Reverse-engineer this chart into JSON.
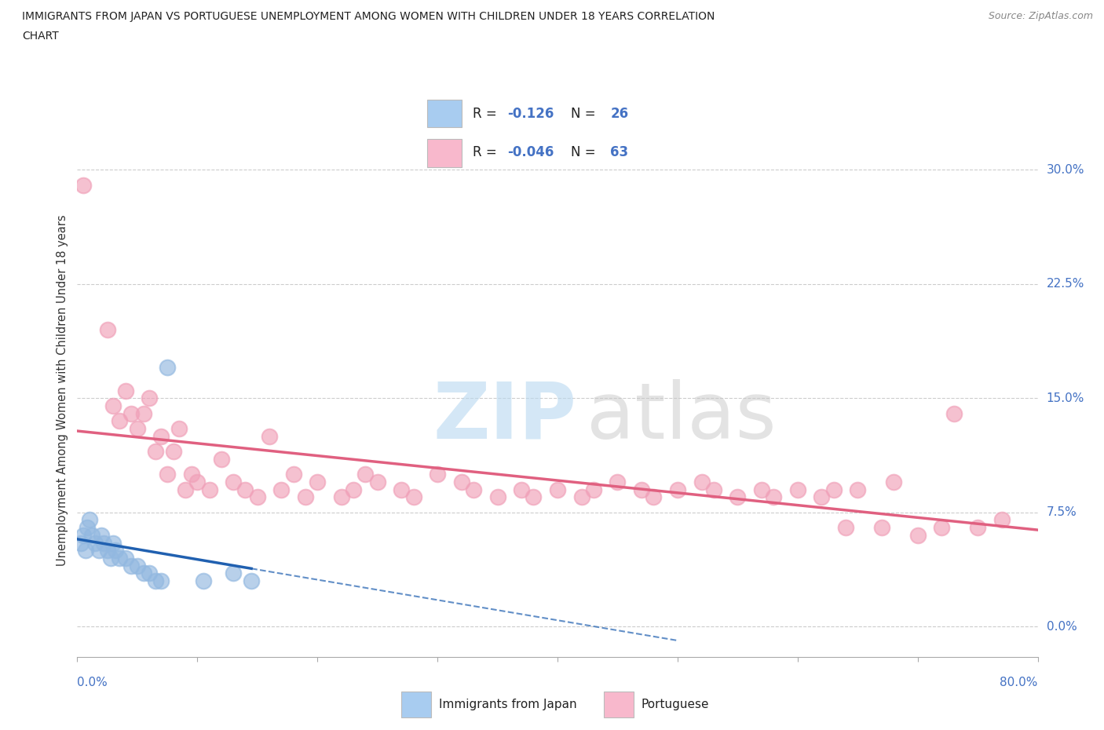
{
  "title_line1": "IMMIGRANTS FROM JAPAN VS PORTUGUESE UNEMPLOYMENT AMONG WOMEN WITH CHILDREN UNDER 18 YEARS CORRELATION",
  "title_line2": "CHART",
  "source": "Source: ZipAtlas.com",
  "ylabel": "Unemployment Among Women with Children Under 18 years",
  "ytick_values": [
    0.0,
    7.5,
    15.0,
    22.5,
    30.0
  ],
  "xlim": [
    0.0,
    80.0
  ],
  "ylim": [
    -2.0,
    33.0
  ],
  "japan_color": "#92b8e0",
  "portuguese_color": "#f0a0b8",
  "japan_trendline_color": "#2060b0",
  "portuguese_trendline_color": "#e06080",
  "legend_japan_color": "#a8ccf0",
  "legend_port_color": "#f8b8cc",
  "background_color": "#ffffff",
  "grid_color": "#cccccc",
  "japan_scatter": [
    [
      0.3,
      5.5
    ],
    [
      0.5,
      6.0
    ],
    [
      0.7,
      5.0
    ],
    [
      0.8,
      6.5
    ],
    [
      1.0,
      7.0
    ],
    [
      1.2,
      6.0
    ],
    [
      1.5,
      5.5
    ],
    [
      1.8,
      5.0
    ],
    [
      2.0,
      6.0
    ],
    [
      2.2,
      5.5
    ],
    [
      2.5,
      5.0
    ],
    [
      2.8,
      4.5
    ],
    [
      3.0,
      5.5
    ],
    [
      3.2,
      5.0
    ],
    [
      3.5,
      4.5
    ],
    [
      4.0,
      4.5
    ],
    [
      4.5,
      4.0
    ],
    [
      5.0,
      4.0
    ],
    [
      5.5,
      3.5
    ],
    [
      6.0,
      3.5
    ],
    [
      6.5,
      3.0
    ],
    [
      7.0,
      3.0
    ],
    [
      7.5,
      17.0
    ],
    [
      10.5,
      3.0
    ],
    [
      13.0,
      3.5
    ],
    [
      14.5,
      3.0
    ]
  ],
  "portuguese_scatter": [
    [
      0.5,
      29.0
    ],
    [
      2.5,
      19.5
    ],
    [
      3.0,
      14.5
    ],
    [
      3.5,
      13.5
    ],
    [
      4.0,
      15.5
    ],
    [
      4.5,
      14.0
    ],
    [
      5.0,
      13.0
    ],
    [
      5.5,
      14.0
    ],
    [
      6.0,
      15.0
    ],
    [
      6.5,
      11.5
    ],
    [
      7.0,
      12.5
    ],
    [
      7.5,
      10.0
    ],
    [
      8.0,
      11.5
    ],
    [
      8.5,
      13.0
    ],
    [
      9.0,
      9.0
    ],
    [
      9.5,
      10.0
    ],
    [
      10.0,
      9.5
    ],
    [
      11.0,
      9.0
    ],
    [
      12.0,
      11.0
    ],
    [
      13.0,
      9.5
    ],
    [
      14.0,
      9.0
    ],
    [
      15.0,
      8.5
    ],
    [
      16.0,
      12.5
    ],
    [
      17.0,
      9.0
    ],
    [
      18.0,
      10.0
    ],
    [
      19.0,
      8.5
    ],
    [
      20.0,
      9.5
    ],
    [
      22.0,
      8.5
    ],
    [
      23.0,
      9.0
    ],
    [
      24.0,
      10.0
    ],
    [
      25.0,
      9.5
    ],
    [
      27.0,
      9.0
    ],
    [
      28.0,
      8.5
    ],
    [
      30.0,
      10.0
    ],
    [
      32.0,
      9.5
    ],
    [
      33.0,
      9.0
    ],
    [
      35.0,
      8.5
    ],
    [
      37.0,
      9.0
    ],
    [
      38.0,
      8.5
    ],
    [
      40.0,
      9.0
    ],
    [
      42.0,
      8.5
    ],
    [
      43.0,
      9.0
    ],
    [
      45.0,
      9.5
    ],
    [
      47.0,
      9.0
    ],
    [
      48.0,
      8.5
    ],
    [
      50.0,
      9.0
    ],
    [
      52.0,
      9.5
    ],
    [
      53.0,
      9.0
    ],
    [
      55.0,
      8.5
    ],
    [
      57.0,
      9.0
    ],
    [
      58.0,
      8.5
    ],
    [
      60.0,
      9.0
    ],
    [
      62.0,
      8.5
    ],
    [
      63.0,
      9.0
    ],
    [
      64.0,
      6.5
    ],
    [
      65.0,
      9.0
    ],
    [
      67.0,
      6.5
    ],
    [
      68.0,
      9.5
    ],
    [
      70.0,
      6.0
    ],
    [
      72.0,
      6.5
    ],
    [
      73.0,
      14.0
    ],
    [
      75.0,
      6.5
    ],
    [
      77.0,
      7.0
    ]
  ],
  "watermark_zip_color": "#b8d8f0",
  "watermark_atlas_color": "#c8c8c8"
}
